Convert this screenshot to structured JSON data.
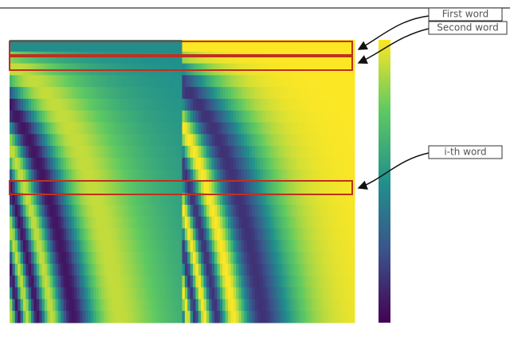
{
  "annotations": [
    {
      "label": "First word"
    },
    {
      "label": "Second word"
    },
    {
      "label": "i-th word"
    }
  ]
}
